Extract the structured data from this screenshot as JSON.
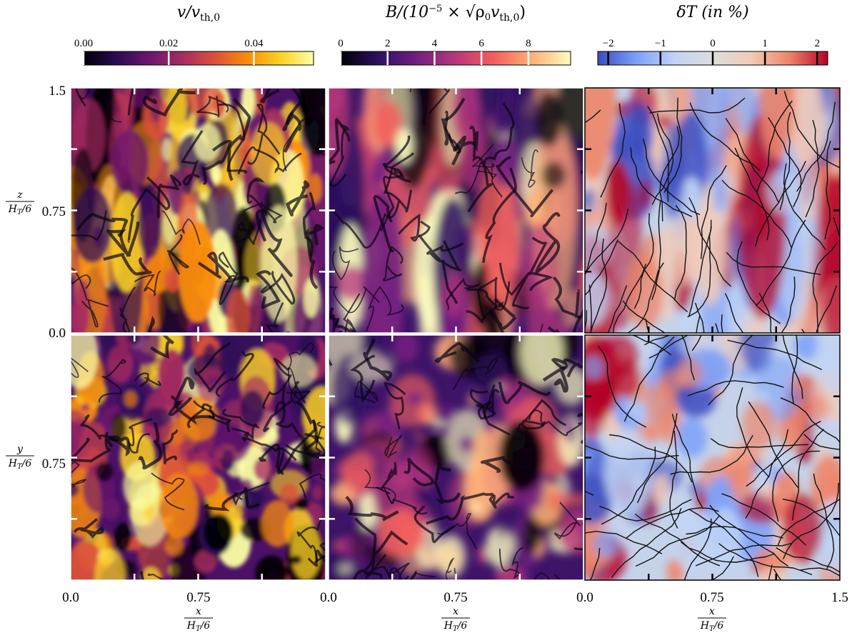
{
  "chart_data": [
    {
      "type": "heatmap",
      "title": "v/v_th,0",
      "colorbar": {
        "ticks": [
          "0.00",
          "0.02",
          "0.04"
        ],
        "range": [
          0,
          0.054
        ],
        "colormap": "inferno"
      },
      "panels": [
        "z vs x (top row)",
        "y vs x (bottom row)"
      ]
    },
    {
      "type": "heatmap",
      "title": "B/(10^-5 × √ρ0 v_th,0)",
      "colorbar": {
        "ticks": [
          "0",
          "2",
          "4",
          "6",
          "8"
        ],
        "range": [
          0,
          9.8
        ],
        "colormap": "magma"
      },
      "panels": [
        "z vs x (top row)",
        "y vs x (bottom row)"
      ]
    },
    {
      "type": "heatmap",
      "title": "δT (in %)",
      "colorbar": {
        "ticks": [
          "−2",
          "−1",
          "0",
          "1",
          "2"
        ],
        "range": [
          -2.2,
          2.2
        ],
        "colormap": "coolwarm"
      },
      "overlay": "magnetic field lines",
      "panels": [
        "z vs x (top row)",
        "y vs x (bottom row)"
      ]
    }
  ],
  "axes": {
    "x_ticks": [
      "0.0",
      "0.75",
      "0.0",
      "0.75",
      "0.0",
      "0.75",
      "1.5"
    ],
    "y_ticks_top": [
      "1.5",
      "0.75",
      "0.0"
    ],
    "y_ticks_bottom": [
      "0.75"
    ],
    "xlabel_num": "x",
    "xlabel_den": "H_T/6",
    "ylabel_top_num": "z",
    "ylabel_bottom_num": "y",
    "ylabel_den": "H_T/6"
  },
  "labels": {
    "title_v": "v/v",
    "title_v_sub": "th,0",
    "title_b_pre": "B/(10",
    "title_b_exp": "−5",
    "title_b_mid": " × √ρ",
    "title_b_sub0": "0",
    "title_b_v": "v",
    "title_b_sub": "th,0",
    "title_b_close": ")",
    "title_t": "δT (in %)",
    "x_num": "x",
    "den": "H",
    "den_sub": "T",
    "den_tail": "/6",
    "z_num": "z",
    "y_num": "y"
  },
  "colors": {
    "inferno": [
      "#000004",
      "#2a0b54",
      "#6a176e",
      "#a52c60",
      "#dd513a",
      "#f98c0a",
      "#fcd225",
      "#fcffa4"
    ],
    "magma": [
      "#000004",
      "#2c115f",
      "#721f81",
      "#b73779",
      "#f1605d",
      "#feb078",
      "#fcfdbf"
    ],
    "coolwarm": [
      "#3b4cc0",
      "#7b9ff9",
      "#c0d4f5",
      "#dddddd",
      "#f2cbb7",
      "#ee8468",
      "#b40426"
    ]
  }
}
